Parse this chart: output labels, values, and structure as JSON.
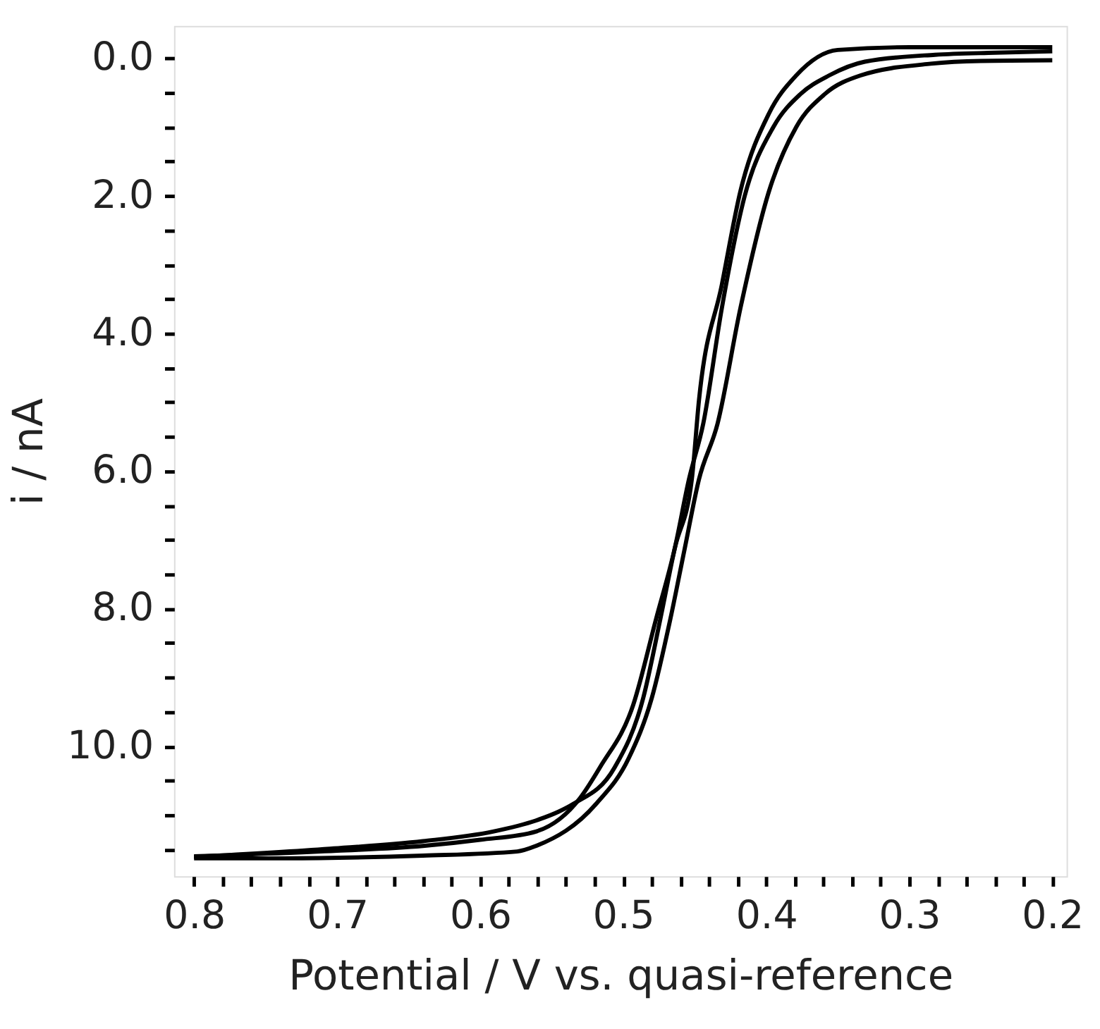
{
  "chart_data": {
    "type": "line",
    "xlabel": "Potential / V vs. quasi-reference",
    "ylabel": "i / nA",
    "xlim": [
      0.814,
      0.19
    ],
    "ylim": [
      11.89,
      -0.47
    ],
    "xticks": [
      0.8,
      {
        "value": 0.78,
        "label": null
      },
      {
        "value": 0.76,
        "label": null
      },
      {
        "value": 0.74,
        "label": null
      },
      {
        "value": 0.72,
        "label": null
      },
      0.7,
      {
        "value": 0.68,
        "label": null
      },
      {
        "value": 0.66,
        "label": null
      },
      {
        "value": 0.64,
        "label": null
      },
      {
        "value": 0.62,
        "label": null
      },
      0.6,
      {
        "value": 0.58,
        "label": null
      },
      {
        "value": 0.56,
        "label": null
      },
      {
        "value": 0.54,
        "label": null
      },
      {
        "value": 0.52,
        "label": null
      },
      0.5,
      {
        "value": 0.48,
        "label": null
      },
      {
        "value": 0.46,
        "label": null
      },
      {
        "value": 0.44,
        "label": null
      },
      {
        "value": 0.42,
        "label": null
      },
      0.4,
      {
        "value": 0.38,
        "label": null
      },
      {
        "value": 0.36,
        "label": null
      },
      {
        "value": 0.34,
        "label": null
      },
      {
        "value": 0.32,
        "label": null
      },
      0.3,
      {
        "value": 0.28,
        "label": null
      },
      {
        "value": 0.26,
        "label": null
      },
      {
        "value": 0.24,
        "label": null
      },
      {
        "value": 0.22,
        "label": null
      },
      0.2
    ],
    "yticks": [
      {
        "value": 0,
        "label": "0.0"
      },
      {
        "value": 0.5,
        "label": null
      },
      {
        "value": 1,
        "label": null
      },
      {
        "value": 1.5,
        "label": null
      },
      {
        "value": 2,
        "label": "2.0"
      },
      {
        "value": 2.5,
        "label": null
      },
      {
        "value": 3,
        "label": null
      },
      {
        "value": 3.5,
        "label": null
      },
      {
        "value": 4,
        "label": "4.0"
      },
      {
        "value": 4.5,
        "label": null
      },
      {
        "value": 5,
        "label": null
      },
      {
        "value": 5.5,
        "label": null
      },
      {
        "value": 6,
        "label": "6.0"
      },
      {
        "value": 6.5,
        "label": null
      },
      {
        "value": 7,
        "label": null
      },
      {
        "value": 7.5,
        "label": null
      },
      {
        "value": 8,
        "label": "8.0"
      },
      {
        "value": 8.5,
        "label": null
      },
      {
        "value": 9,
        "label": null
      },
      {
        "value": 9.5,
        "label": null
      },
      {
        "value": 10,
        "label": "10.0"
      },
      {
        "value": 10.5,
        "label": null
      },
      {
        "value": 11,
        "label": null
      },
      {
        "value": 11.5,
        "label": null
      }
    ],
    "grid": false,
    "marker": "none",
    "line_style": "solid",
    "series": [
      {
        "color": "#000000",
        "x": [
          0.8,
          0.705,
          0.64,
          0.591,
          0.561,
          0.545,
          0.535,
          0.506,
          0.486,
          0.474,
          0.464,
          0.452,
          0.447,
          0.431,
          0.418,
          0.398,
          0.379,
          0.35,
          0.3,
          0.25,
          0.2
        ],
        "values": [
          11.61,
          11.49,
          11.38,
          11.24,
          11.08,
          10.95,
          10.84,
          10.31,
          9.3,
          8.15,
          7.13,
          6.12,
          4.97,
          3.29,
          1.93,
          0.8,
          0.25,
          -0.12,
          -0.16,
          -0.16,
          -0.16
        ]
      },
      {
        "color": "#000000",
        "x": [
          0.8,
          0.7,
          0.64,
          0.6,
          0.561,
          0.53,
          0.516,
          0.493,
          0.477,
          0.464,
          0.454,
          0.444,
          0.431,
          0.415,
          0.395,
          0.376,
          0.356,
          0.331,
          0.282,
          0.24,
          0.2
        ],
        "values": [
          11.6,
          11.52,
          11.45,
          11.36,
          11.24,
          10.75,
          10.3,
          9.4,
          8.15,
          7.13,
          6.12,
          5.31,
          3.63,
          2.0,
          1.0,
          0.52,
          0.25,
          0.05,
          -0.05,
          -0.08,
          -0.1
        ]
      },
      {
        "color": "#000000",
        "x": [
          0.8,
          0.737,
          0.64,
          0.574,
          0.561,
          0.519,
          0.496,
          0.48,
          0.467,
          0.457,
          0.447,
          0.434,
          0.418,
          0.398,
          0.379,
          0.359,
          0.334,
          0.285,
          0.25,
          0.2
        ],
        "values": [
          11.63,
          11.63,
          11.59,
          11.53,
          11.45,
          10.84,
          10.17,
          9.3,
          8.15,
          7.13,
          6.12,
          5.31,
          3.63,
          1.93,
          1.0,
          0.52,
          0.25,
          0.08,
          0.04,
          0.03
        ]
      }
    ]
  }
}
